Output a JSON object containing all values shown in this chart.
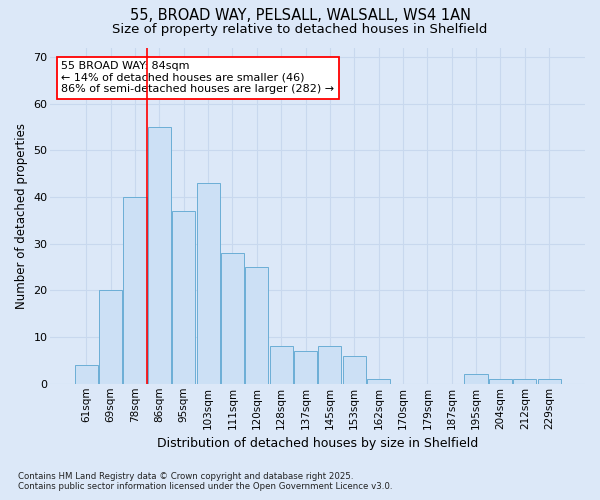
{
  "title_line1": "55, BROAD WAY, PELSALL, WALSALL, WS4 1AN",
  "title_line2": "Size of property relative to detached houses in Shelfield",
  "xlabel": "Distribution of detached houses by size in Shelfield",
  "ylabel": "Number of detached properties",
  "categories": [
    "61sqm",
    "69sqm",
    "78sqm",
    "86sqm",
    "95sqm",
    "103sqm",
    "111sqm",
    "120sqm",
    "128sqm",
    "137sqm",
    "145sqm",
    "153sqm",
    "162sqm",
    "170sqm",
    "179sqm",
    "187sqm",
    "195sqm",
    "204sqm",
    "212sqm",
    "229sqm"
  ],
  "values": [
    4,
    20,
    40,
    55,
    37,
    43,
    28,
    25,
    8,
    7,
    8,
    6,
    1,
    0,
    0,
    0,
    2,
    1,
    1,
    1
  ],
  "ylim": [
    0,
    72
  ],
  "yticks": [
    0,
    10,
    20,
    30,
    40,
    50,
    60,
    70
  ],
  "bar_color": "#cce0f5",
  "bar_edge_color": "#6baed6",
  "grid_color": "#c8d8ee",
  "background_color": "#dce8f8",
  "fig_background_color": "#dce8f8",
  "annotation_text": "55 BROAD WAY: 84sqm\n← 14% of detached houses are smaller (46)\n86% of semi-detached houses are larger (282) →",
  "redline_x": 2.5,
  "footnote": "Contains HM Land Registry data © Crown copyright and database right 2025.\nContains public sector information licensed under the Open Government Licence v3.0."
}
